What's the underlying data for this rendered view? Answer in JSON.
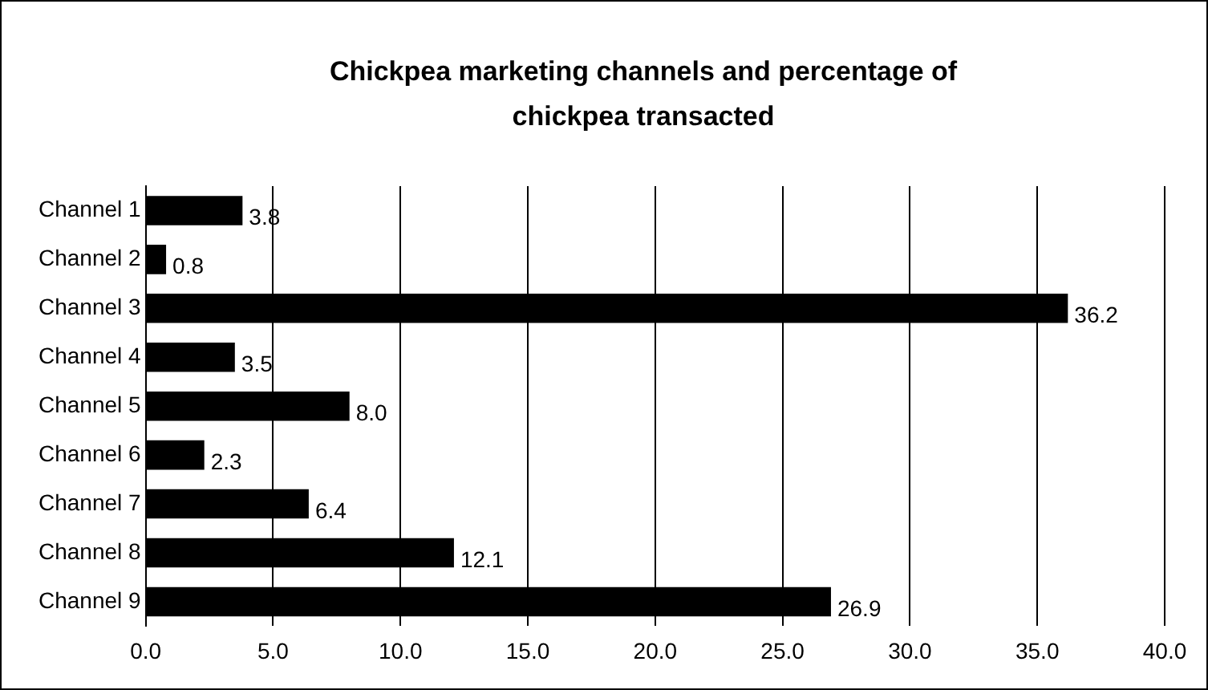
{
  "chart_data": {
    "type": "bar",
    "orientation": "horizontal",
    "title": "Chickpea marketing channels and percentage of chickpea transacted",
    "categories": [
      "Channel 1",
      "Channel 2",
      "Channel 3",
      "Channel 4",
      "Channel 5",
      "Channel 6",
      "Channel 7",
      "Channel 8",
      "Channel 9"
    ],
    "values": [
      3.8,
      0.8,
      36.2,
      3.5,
      8.0,
      2.3,
      6.4,
      12.1,
      26.9
    ],
    "value_labels": [
      "3.8",
      "0.8",
      "36.2",
      "3.5",
      "8.0",
      "2.3",
      "6.4",
      "12.1",
      "26.9"
    ],
    "color": "#000000",
    "xlim": [
      0,
      40
    ],
    "xticks": [
      {
        "value": 0,
        "label": "0.0"
      },
      {
        "value": 5,
        "label": "5.0"
      },
      {
        "value": 10,
        "label": "10.0"
      },
      {
        "value": 15,
        "label": "15.0"
      },
      {
        "value": 20,
        "label": "20.0"
      },
      {
        "value": 25,
        "label": "25.0"
      },
      {
        "value": 30,
        "label": "30.0"
      },
      {
        "value": 35,
        "label": "35.0"
      },
      {
        "value": 40,
        "label": "40.0"
      }
    ],
    "grid": "x",
    "legend": false
  }
}
